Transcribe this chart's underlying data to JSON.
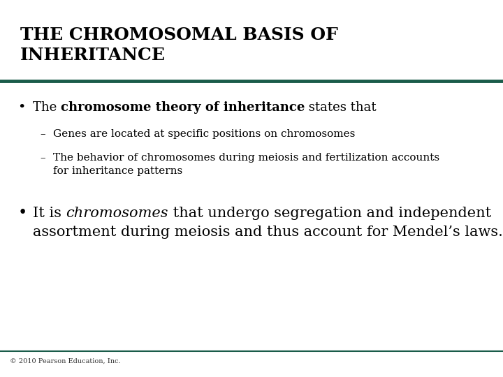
{
  "bg_color": "#ffffff",
  "title_line1": "THE CHROMOSOMAL BASIS OF",
  "title_line2": "INHERITANCE",
  "title_color": "#000000",
  "title_fontsize": 18,
  "divider_color": "#1a5c4a",
  "divider_linewidth": 3.5,
  "bullet1_pre": "The ",
  "bullet1_bold": "chromosome theory of inheritance",
  "bullet1_post": " states that",
  "sub1": "Genes are located at specific positions on chromosomes",
  "sub2_line1": "The behavior of chromosomes during meiosis and fertilization accounts",
  "sub2_line2": "for inheritance patterns",
  "bullet2_pre": "It is ",
  "bullet2_italic": "chromosomes",
  "bullet2_post_line1": " that undergo segregation and independent",
  "bullet2_line2": "assortment during meiosis and thus account for Mendel’s laws.",
  "body_fontsize": 13,
  "sub_fontsize": 11,
  "bullet2_fontsize": 15,
  "footer_text": "© 2010 Pearson Education, Inc.",
  "footer_fontsize": 7,
  "footer_color": "#333333",
  "bottom_line_color": "#1a5c4a",
  "text_color": "#000000",
  "fig_width": 7.2,
  "fig_height": 5.4,
  "dpi": 100
}
